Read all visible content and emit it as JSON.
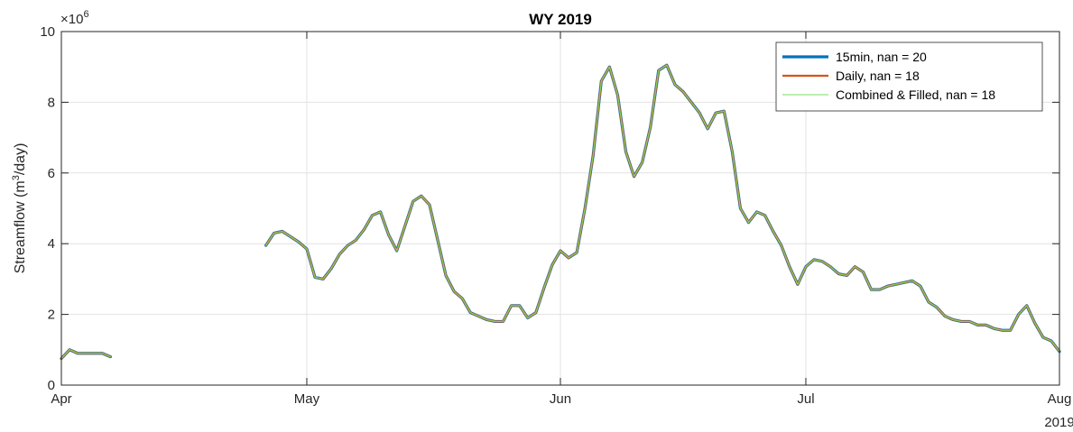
{
  "chart_data": {
    "type": "line",
    "title": "WY 2019",
    "ylabel_main": "Streamflow (m",
    "ylabel_sup": "3",
    "ylabel_end": "/day)",
    "y_exponent_base": "×10",
    "y_exponent_power": "6",
    "ylim": [
      0,
      10
    ],
    "yticks": [
      "0",
      "2",
      "4",
      "6",
      "8",
      "10"
    ],
    "xlim": [
      "2019-04-01",
      "2019-08-01"
    ],
    "xticks": [
      {
        "date": "2019-04-01",
        "label": "Apr"
      },
      {
        "date": "2019-05-01",
        "label": "May"
      },
      {
        "date": "2019-06-01",
        "label": "Jun"
      },
      {
        "date": "2019-07-01",
        "label": "Jul"
      },
      {
        "date": "2019-08-01",
        "label": "Aug"
      }
    ],
    "year_label": "2019",
    "grid": true,
    "legend_position": "top-right",
    "series": [
      {
        "name": "15min, nan = 20",
        "color": "#0072BD",
        "width": 3.2
      },
      {
        "name": "Daily, nan = 18",
        "color": "#D95319",
        "width": 2.2
      },
      {
        "name": "Combined & Filled, nan = 18",
        "color": "#77DD66",
        "width": 1.1
      }
    ],
    "data": [
      [
        "2019-04-01",
        0.75
      ],
      [
        "2019-04-02",
        1.0
      ],
      [
        "2019-04-03",
        0.9
      ],
      [
        "2019-04-04",
        0.9
      ],
      [
        "2019-04-05",
        0.9
      ],
      [
        "2019-04-06",
        0.9
      ],
      [
        "2019-04-07",
        0.8
      ],
      [
        "2019-04-25",
        null
      ],
      [
        "2019-04-26",
        3.95
      ],
      [
        "2019-04-27",
        4.3
      ],
      [
        "2019-04-28",
        4.35
      ],
      [
        "2019-04-29",
        4.2
      ],
      [
        "2019-04-30",
        4.05
      ],
      [
        "2019-05-01",
        3.85
      ],
      [
        "2019-05-02",
        3.05
      ],
      [
        "2019-05-03",
        3.0
      ],
      [
        "2019-05-04",
        3.3
      ],
      [
        "2019-05-05",
        3.7
      ],
      [
        "2019-05-06",
        3.95
      ],
      [
        "2019-05-07",
        4.1
      ],
      [
        "2019-05-08",
        4.4
      ],
      [
        "2019-05-09",
        4.8
      ],
      [
        "2019-05-10",
        4.9
      ],
      [
        "2019-05-11",
        4.25
      ],
      [
        "2019-05-12",
        3.8
      ],
      [
        "2019-05-13",
        4.5
      ],
      [
        "2019-05-14",
        5.2
      ],
      [
        "2019-05-15",
        5.35
      ],
      [
        "2019-05-16",
        5.1
      ],
      [
        "2019-05-17",
        4.1
      ],
      [
        "2019-05-18",
        3.1
      ],
      [
        "2019-05-19",
        2.65
      ],
      [
        "2019-05-20",
        2.45
      ],
      [
        "2019-05-21",
        2.05
      ],
      [
        "2019-05-22",
        1.95
      ],
      [
        "2019-05-23",
        1.85
      ],
      [
        "2019-05-24",
        1.8
      ],
      [
        "2019-05-25",
        1.8
      ],
      [
        "2019-05-26",
        2.25
      ],
      [
        "2019-05-27",
        2.25
      ],
      [
        "2019-05-28",
        1.9
      ],
      [
        "2019-05-29",
        2.05
      ],
      [
        "2019-05-30",
        2.75
      ],
      [
        "2019-05-31",
        3.4
      ],
      [
        "2019-06-01",
        3.8
      ],
      [
        "2019-06-02",
        3.6
      ],
      [
        "2019-06-03",
        3.75
      ],
      [
        "2019-06-04",
        5.0
      ],
      [
        "2019-06-05",
        6.5
      ],
      [
        "2019-06-06",
        8.6
      ],
      [
        "2019-06-07",
        9.0
      ],
      [
        "2019-06-08",
        8.2
      ],
      [
        "2019-06-09",
        6.6
      ],
      [
        "2019-06-10",
        5.9
      ],
      [
        "2019-06-11",
        6.3
      ],
      [
        "2019-06-12",
        7.3
      ],
      [
        "2019-06-13",
        8.9
      ],
      [
        "2019-06-14",
        9.05
      ],
      [
        "2019-06-15",
        8.5
      ],
      [
        "2019-06-16",
        8.3
      ],
      [
        "2019-06-17",
        8.0
      ],
      [
        "2019-06-18",
        7.7
      ],
      [
        "2019-06-19",
        7.25
      ],
      [
        "2019-06-20",
        7.7
      ],
      [
        "2019-06-21",
        7.75
      ],
      [
        "2019-06-22",
        6.6
      ],
      [
        "2019-06-23",
        5.0
      ],
      [
        "2019-06-24",
        4.6
      ],
      [
        "2019-06-25",
        4.9
      ],
      [
        "2019-06-26",
        4.8
      ],
      [
        "2019-06-27",
        4.35
      ],
      [
        "2019-06-28",
        3.95
      ],
      [
        "2019-06-29",
        3.35
      ],
      [
        "2019-06-30",
        2.85
      ],
      [
        "2019-07-01",
        3.35
      ],
      [
        "2019-07-02",
        3.55
      ],
      [
        "2019-07-03",
        3.5
      ],
      [
        "2019-07-04",
        3.35
      ],
      [
        "2019-07-05",
        3.15
      ],
      [
        "2019-07-06",
        3.1
      ],
      [
        "2019-07-07",
        3.35
      ],
      [
        "2019-07-08",
        3.2
      ],
      [
        "2019-07-09",
        2.7
      ],
      [
        "2019-07-10",
        2.7
      ],
      [
        "2019-07-11",
        2.8
      ],
      [
        "2019-07-12",
        2.85
      ],
      [
        "2019-07-13",
        2.9
      ],
      [
        "2019-07-14",
        2.95
      ],
      [
        "2019-07-15",
        2.8
      ],
      [
        "2019-07-16",
        2.35
      ],
      [
        "2019-07-17",
        2.2
      ],
      [
        "2019-07-18",
        1.95
      ],
      [
        "2019-07-19",
        1.85
      ],
      [
        "2019-07-20",
        1.8
      ],
      [
        "2019-07-21",
        1.8
      ],
      [
        "2019-07-22",
        1.7
      ],
      [
        "2019-07-23",
        1.7
      ],
      [
        "2019-07-24",
        1.6
      ],
      [
        "2019-07-25",
        1.55
      ],
      [
        "2019-07-26",
        1.55
      ],
      [
        "2019-07-27",
        2.0
      ],
      [
        "2019-07-28",
        2.25
      ],
      [
        "2019-07-29",
        1.75
      ],
      [
        "2019-07-30",
        1.35
      ],
      [
        "2019-07-31",
        1.25
      ],
      [
        "2019-08-01",
        0.95
      ]
    ]
  }
}
